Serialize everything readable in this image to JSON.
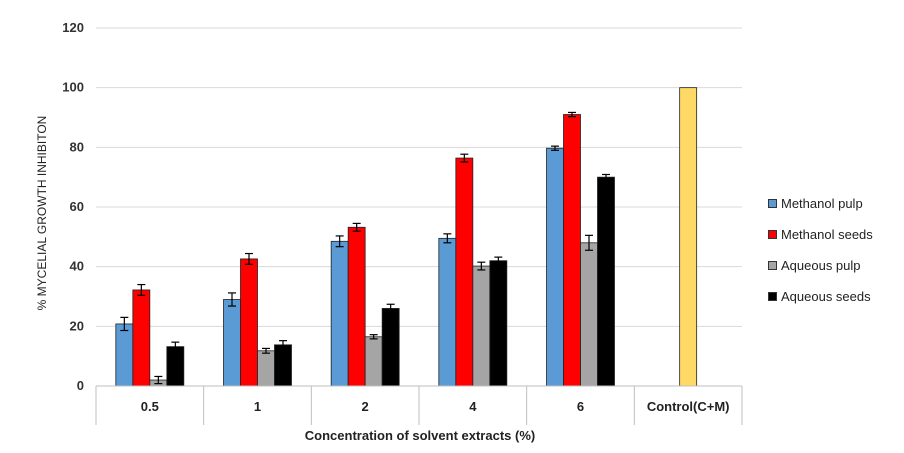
{
  "chart_data": {
    "type": "bar",
    "categories": [
      "0.5",
      "1",
      "2",
      "4",
      "6",
      "Control(C+M)"
    ],
    "series": [
      {
        "name": "Methanol pulp",
        "color": "#5B9BD5",
        "values": [
          20.8,
          29.0,
          48.5,
          49.5,
          79.7,
          null
        ],
        "errors": [
          2.2,
          2.2,
          1.8,
          1.5,
          0.7,
          null
        ]
      },
      {
        "name": "Methanol seeds",
        "color": "#FF0000",
        "values": [
          32.2,
          42.6,
          53.2,
          76.4,
          91.0,
          null
        ],
        "errors": [
          1.8,
          1.8,
          1.3,
          1.3,
          0.7,
          null
        ]
      },
      {
        "name": "Aqueous pulp",
        "color": "#A5A5A5",
        "values": [
          2.0,
          11.8,
          16.5,
          40.2,
          48.0,
          null
        ],
        "errors": [
          1.2,
          0.8,
          0.7,
          1.3,
          2.5,
          null
        ]
      },
      {
        "name": "Aqueous seeds",
        "color": "#000000",
        "values": [
          13.2,
          13.8,
          26.0,
          42.0,
          70.0,
          null
        ],
        "errors": [
          1.5,
          1.4,
          1.4,
          1.2,
          0.9,
          null
        ]
      },
      {
        "name": "",
        "color": "#FFD966",
        "values": [
          null,
          null,
          null,
          null,
          null,
          100
        ],
        "errors": [
          null,
          null,
          null,
          null,
          null,
          null
        ]
      }
    ],
    "xlabel": "Concentration of solvent extracts (%)",
    "ylabel": "% MYCELIAL GROWTH INHIBITON",
    "ylim": [
      0,
      120
    ],
    "yticks": [
      "0",
      "20",
      "40",
      "60",
      "80",
      "100",
      "120"
    ],
    "grid": true,
    "legend_position": "right"
  }
}
